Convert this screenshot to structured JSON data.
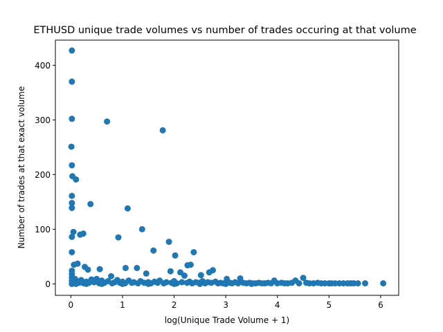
{
  "chart_data": {
    "type": "scatter",
    "title": "ETHUSD unique trade volumes vs number of trades occuring at that volume",
    "xlabel": "log(Unique Trade Volume + 1)",
    "ylabel": "Number of trades at that exact volume",
    "xlim": [
      -0.3,
      6.35
    ],
    "ylim": [
      -21,
      446
    ],
    "xticks": [
      0,
      1,
      2,
      3,
      4,
      5,
      6
    ],
    "yticks": [
      0,
      100,
      200,
      300,
      400
    ],
    "grid": false,
    "marker_color": "#1f77b4",
    "points": [
      [
        0.02,
        427
      ],
      [
        0.02,
        370
      ],
      [
        0.02,
        302
      ],
      [
        0.01,
        251
      ],
      [
        0.02,
        217
      ],
      [
        0.03,
        197
      ],
      [
        0.1,
        191
      ],
      [
        0.02,
        161
      ],
      [
        0.02,
        148
      ],
      [
        0.02,
        139
      ],
      [
        0.38,
        146
      ],
      [
        0.05,
        95
      ],
      [
        0.02,
        86
      ],
      [
        0.02,
        58
      ],
      [
        0.18,
        90
      ],
      [
        0.24,
        92
      ],
      [
        0.7,
        297
      ],
      [
        1.78,
        281
      ],
      [
        1.1,
        138
      ],
      [
        1.38,
        100
      ],
      [
        0.92,
        85
      ],
      [
        1.9,
        77
      ],
      [
        1.6,
        61
      ],
      [
        2.38,
        58
      ],
      [
        2.02,
        52
      ],
      [
        2.26,
        34
      ],
      [
        2.32,
        35
      ],
      [
        0.06,
        35
      ],
      [
        0.13,
        37
      ],
      [
        0.27,
        31
      ],
      [
        0.33,
        26
      ],
      [
        0.56,
        27
      ],
      [
        1.06,
        29
      ],
      [
        1.28,
        29
      ],
      [
        1.93,
        23
      ],
      [
        2.12,
        21
      ],
      [
        2.75,
        25
      ],
      [
        2.68,
        21
      ],
      [
        2.52,
        16
      ],
      [
        0.78,
        14
      ],
      [
        1.46,
        19
      ],
      [
        2.2,
        15
      ],
      [
        0.02,
        24
      ],
      [
        0.02,
        18
      ],
      [
        0.02,
        12
      ],
      [
        0.02,
        6
      ],
      [
        0.02,
        1
      ],
      [
        0.05,
        3
      ],
      [
        0.08,
        9
      ],
      [
        0.12,
        5
      ],
      [
        0.16,
        2
      ],
      [
        0.2,
        7
      ],
      [
        0.25,
        1
      ],
      [
        0.3,
        4
      ],
      [
        0.35,
        2
      ],
      [
        0.4,
        8
      ],
      [
        0.45,
        3
      ],
      [
        0.5,
        9
      ],
      [
        0.55,
        1
      ],
      [
        0.6,
        6
      ],
      [
        0.65,
        2
      ],
      [
        0.72,
        5
      ],
      [
        0.8,
        1
      ],
      [
        0.85,
        3
      ],
      [
        0.9,
        7
      ],
      [
        0.95,
        2
      ],
      [
        1.0,
        4
      ],
      [
        1.05,
        1
      ],
      [
        1.12,
        6
      ],
      [
        1.18,
        2
      ],
      [
        1.22,
        3
      ],
      [
        1.3,
        1
      ],
      [
        1.35,
        5
      ],
      [
        1.42,
        2
      ],
      [
        1.5,
        3
      ],
      [
        1.55,
        1
      ],
      [
        1.62,
        4
      ],
      [
        1.68,
        2
      ],
      [
        1.72,
        6
      ],
      [
        1.8,
        1
      ],
      [
        1.85,
        3
      ],
      [
        1.95,
        2
      ],
      [
        2.0,
        5
      ],
      [
        2.05,
        1
      ],
      [
        2.15,
        3
      ],
      [
        2.25,
        2
      ],
      [
        2.3,
        4
      ],
      [
        2.35,
        1
      ],
      [
        2.42,
        3
      ],
      [
        2.48,
        2
      ],
      [
        2.55,
        5
      ],
      [
        2.6,
        1
      ],
      [
        2.65,
        3
      ],
      [
        2.72,
        2
      ],
      [
        2.8,
        4
      ],
      [
        2.85,
        1
      ],
      [
        2.9,
        2
      ],
      [
        2.95,
        1
      ],
      [
        3.02,
        9
      ],
      [
        3.08,
        2
      ],
      [
        3.12,
        1
      ],
      [
        3.18,
        3
      ],
      [
        3.24,
        1
      ],
      [
        3.28,
        10
      ],
      [
        3.34,
        2
      ],
      [
        3.4,
        1
      ],
      [
        3.46,
        2
      ],
      [
        3.52,
        1
      ],
      [
        3.58,
        1
      ],
      [
        3.64,
        2
      ],
      [
        3.7,
        1
      ],
      [
        3.76,
        1
      ],
      [
        3.82,
        2
      ],
      [
        3.88,
        1
      ],
      [
        3.94,
        6
      ],
      [
        4.0,
        1
      ],
      [
        4.08,
        2
      ],
      [
        4.14,
        1
      ],
      [
        4.2,
        1
      ],
      [
        4.28,
        2
      ],
      [
        4.35,
        6
      ],
      [
        4.42,
        1
      ],
      [
        4.5,
        11
      ],
      [
        4.56,
        2
      ],
      [
        4.62,
        1
      ],
      [
        4.7,
        1
      ],
      [
        4.78,
        2
      ],
      [
        4.85,
        1
      ],
      [
        4.92,
        1
      ],
      [
        5.0,
        1
      ],
      [
        5.05,
        1
      ],
      [
        5.12,
        1
      ],
      [
        5.2,
        1
      ],
      [
        5.28,
        1
      ],
      [
        5.36,
        1
      ],
      [
        5.42,
        1
      ],
      [
        5.48,
        1
      ],
      [
        5.56,
        1
      ],
      [
        5.7,
        1
      ],
      [
        6.05,
        1
      ],
      [
        0.02,
        0
      ],
      [
        0.1,
        0
      ],
      [
        0.3,
        0
      ],
      [
        0.6,
        0
      ],
      [
        1.0,
        0
      ],
      [
        1.5,
        0
      ],
      [
        2.0,
        0
      ],
      [
        2.5,
        0
      ],
      [
        3.0,
        0
      ],
      [
        3.5,
        0
      ]
    ]
  }
}
